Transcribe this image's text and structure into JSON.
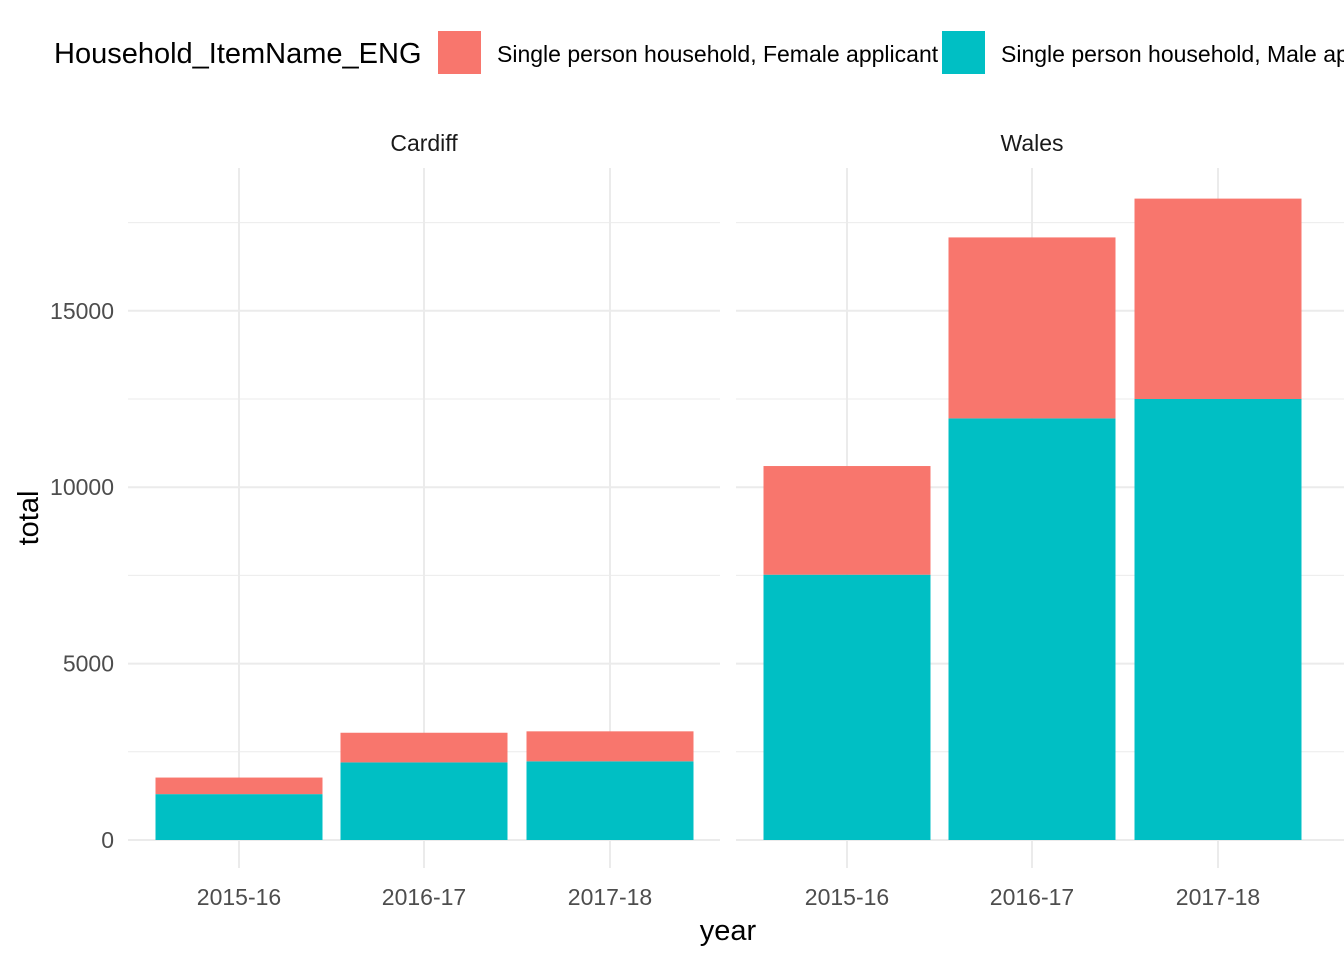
{
  "chart_data": {
    "type": "bar",
    "stacked": true,
    "facet_by": "area",
    "xlabel": "year",
    "ylabel": "total",
    "ylim": [
      0,
      19100
    ],
    "y_ticks": [
      0,
      5000,
      10000,
      15000
    ],
    "y_tick_labels": [
      "0",
      "5000",
      "10000",
      "15000"
    ],
    "grid": true,
    "legend": {
      "title": "Household_ItemName_ENG",
      "position": "top",
      "entries": [
        {
          "label": "Single person household, Female applicant",
          "color": "#F8766D"
        },
        {
          "label": "Single person household, Male applicant",
          "color": "#00BFC4"
        }
      ]
    },
    "categories": [
      "2015-16",
      "2016-17",
      "2017-18"
    ],
    "panels": [
      {
        "title": "Cardiff",
        "series": [
          {
            "name": "Single person household, Male applicant",
            "values": [
              1300,
              2200,
              2230
            ]
          },
          {
            "name": "Single person household, Female applicant",
            "values": [
              470,
              840,
              850
            ]
          }
        ]
      },
      {
        "title": "Wales",
        "series": [
          {
            "name": "Single person household, Male applicant",
            "values": [
              7520,
              11950,
              12500
            ]
          },
          {
            "name": "Single person household, Female applicant",
            "values": [
              3080,
              5130,
              5680
            ]
          }
        ]
      }
    ]
  }
}
